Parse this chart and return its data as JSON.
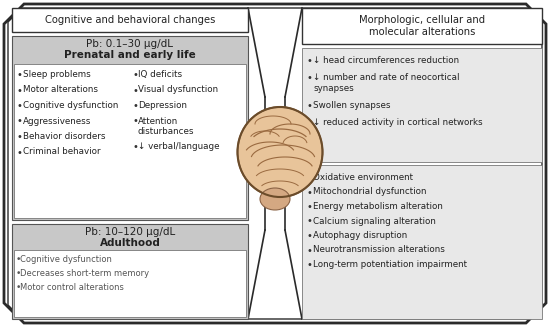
{
  "title_left": "Cognitive and behavioral changes",
  "title_right": "Morphologic, cellular and\nmolecular alterations",
  "pb1_label": "Pb: 0.1–30 μg/dL",
  "pb1_sublabel": "Prenatal and early life",
  "pb1_col1": [
    "Sleep problems",
    "Motor alterations",
    "Cognitive dysfunction",
    "Aggressiveness",
    "Behavior disorders",
    "Criminal behavior"
  ],
  "pb1_col2_items": [
    {
      "text": "IQ deficits",
      "wrap": false
    },
    {
      "text": "Visual dysfunction",
      "wrap": false
    },
    {
      "text": "Depression",
      "wrap": false
    },
    {
      "text": "Attention",
      "wrap": true,
      "wrap2": "disturbances"
    },
    {
      "text": "↓ verbal/language",
      "wrap": false
    }
  ],
  "pb2_label": "Pb: 10–120 μg/dL",
  "pb2_sublabel": "Adulthood",
  "pb2_items": [
    "Cognitive dysfunction",
    "Decreases short-term memory",
    "Motor control alterations"
  ],
  "right_top_items": [
    {
      "text": "↓ head circumferences reduction",
      "wrap": false
    },
    {
      "text": "↓ number and rate of neocortical",
      "wrap": true,
      "wrap2": "synapses"
    },
    {
      "text": "Swollen synapses",
      "wrap": false
    },
    {
      "text": "↓ reduced activity in cortical networks",
      "wrap": false
    }
  ],
  "right_bottom_items": [
    "Oxidative environment",
    "Mitochondrial dysfunction",
    "Energy metabolism alteration",
    "Calcium signaling alteration",
    "Autophagy disruption",
    "Neurotransmission alterations",
    "Long-term potentiation impairment"
  ],
  "bg_color": "#ffffff",
  "text_color": "#222222",
  "gray_header": "#c8c8c8",
  "light_gray_box": "#e8e8e8",
  "outer_cut": 20,
  "inner_cut": 14
}
